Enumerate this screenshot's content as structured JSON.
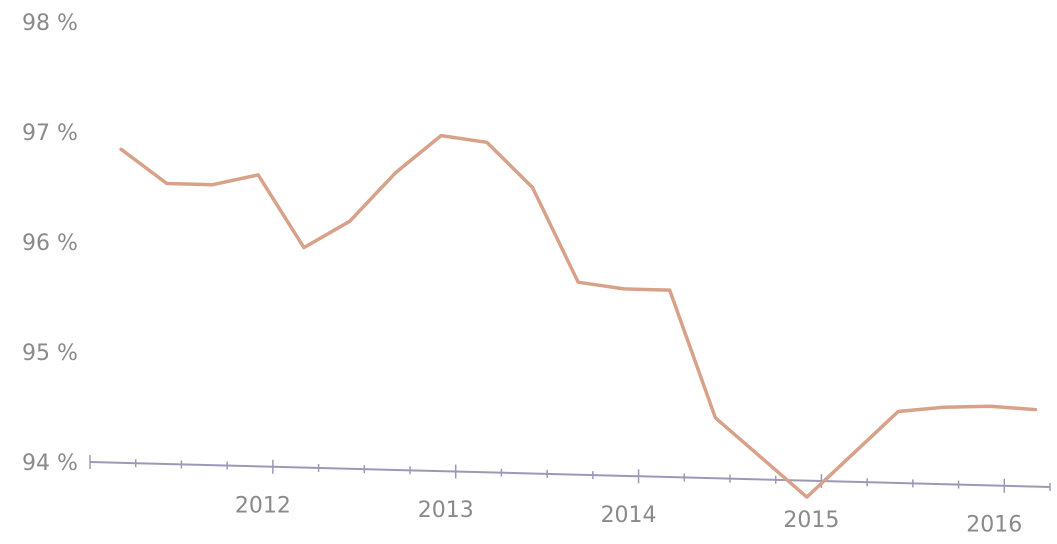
{
  "chart_data": {
    "type": "line",
    "title": "",
    "xlabel": "",
    "ylabel": "",
    "y_ticks": [
      "94 %",
      "95 %",
      "96 %",
      "97 %",
      "98 %"
    ],
    "y_tick_values": [
      94,
      95,
      96,
      97,
      98
    ],
    "x_ticks": [
      "2012",
      "2013",
      "2014",
      "2015",
      "2016"
    ],
    "x_tick_values": [
      2012,
      2013,
      2014,
      2015,
      2016
    ],
    "ylim": [
      94,
      98
    ],
    "xlim": [
      2011.0,
      2016.25
    ],
    "grid": false,
    "series": [
      {
        "color": "#d8a18a",
        "x": [
          2011.17,
          2011.42,
          2011.67,
          2011.92,
          2012.17,
          2012.42,
          2012.67,
          2012.92,
          2013.17,
          2013.42,
          2013.67,
          2013.92,
          2014.17,
          2014.42,
          2014.67,
          2014.92,
          2015.17,
          2015.42,
          2015.67,
          2015.92,
          2016.17
        ],
        "y": [
          96.85,
          96.55,
          96.55,
          96.65,
          96.0,
          96.25,
          96.7,
          97.05,
          97.0,
          96.6,
          95.75,
          95.7,
          95.7,
          94.55,
          94.2,
          93.85,
          94.25,
          94.65,
          94.7,
          94.72,
          94.7
        ]
      }
    ]
  }
}
